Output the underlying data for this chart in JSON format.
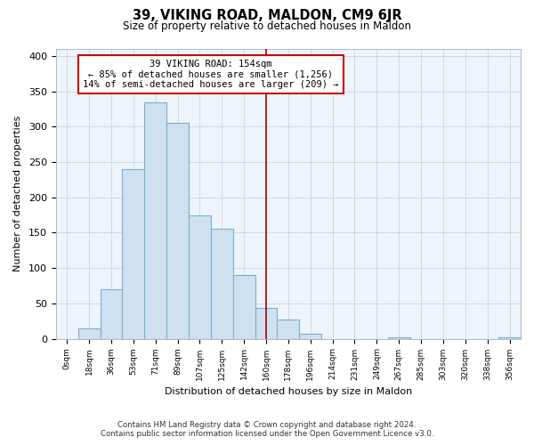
{
  "title": "39, VIKING ROAD, MALDON, CM9 6JR",
  "subtitle": "Size of property relative to detached houses in Maldon",
  "xlabel": "Distribution of detached houses by size in Maldon",
  "ylabel": "Number of detached properties",
  "bar_labels": [
    "0sqm",
    "18sqm",
    "36sqm",
    "53sqm",
    "71sqm",
    "89sqm",
    "107sqm",
    "125sqm",
    "142sqm",
    "160sqm",
    "178sqm",
    "196sqm",
    "214sqm",
    "231sqm",
    "249sqm",
    "267sqm",
    "285sqm",
    "303sqm",
    "320sqm",
    "338sqm",
    "356sqm"
  ],
  "bar_values": [
    0,
    15,
    70,
    240,
    335,
    305,
    175,
    155,
    90,
    43,
    27,
    7,
    0,
    0,
    0,
    2,
    0,
    0,
    0,
    0,
    2
  ],
  "bar_color": "#cfe0f0",
  "bar_edge_color": "#7aafcf",
  "vline_x": 9,
  "vline_color": "#aa0000",
  "annotation_text": "39 VIKING ROAD: 154sqm\n← 85% of detached houses are smaller (1,256)\n14% of semi-detached houses are larger (209) →",
  "annotation_box_facecolor": "#ffffff",
  "annotation_box_edgecolor": "#cc0000",
  "ylim": [
    0,
    410
  ],
  "yticks": [
    0,
    50,
    100,
    150,
    200,
    250,
    300,
    350,
    400
  ],
  "footer_line1": "Contains HM Land Registry data © Crown copyright and database right 2024.",
  "footer_line2": "Contains public sector information licensed under the Open Government Licence v3.0.",
  "bg_color": "#ffffff",
  "grid_color": "#c8d4e0",
  "plot_bg_color": "#eef4fb"
}
